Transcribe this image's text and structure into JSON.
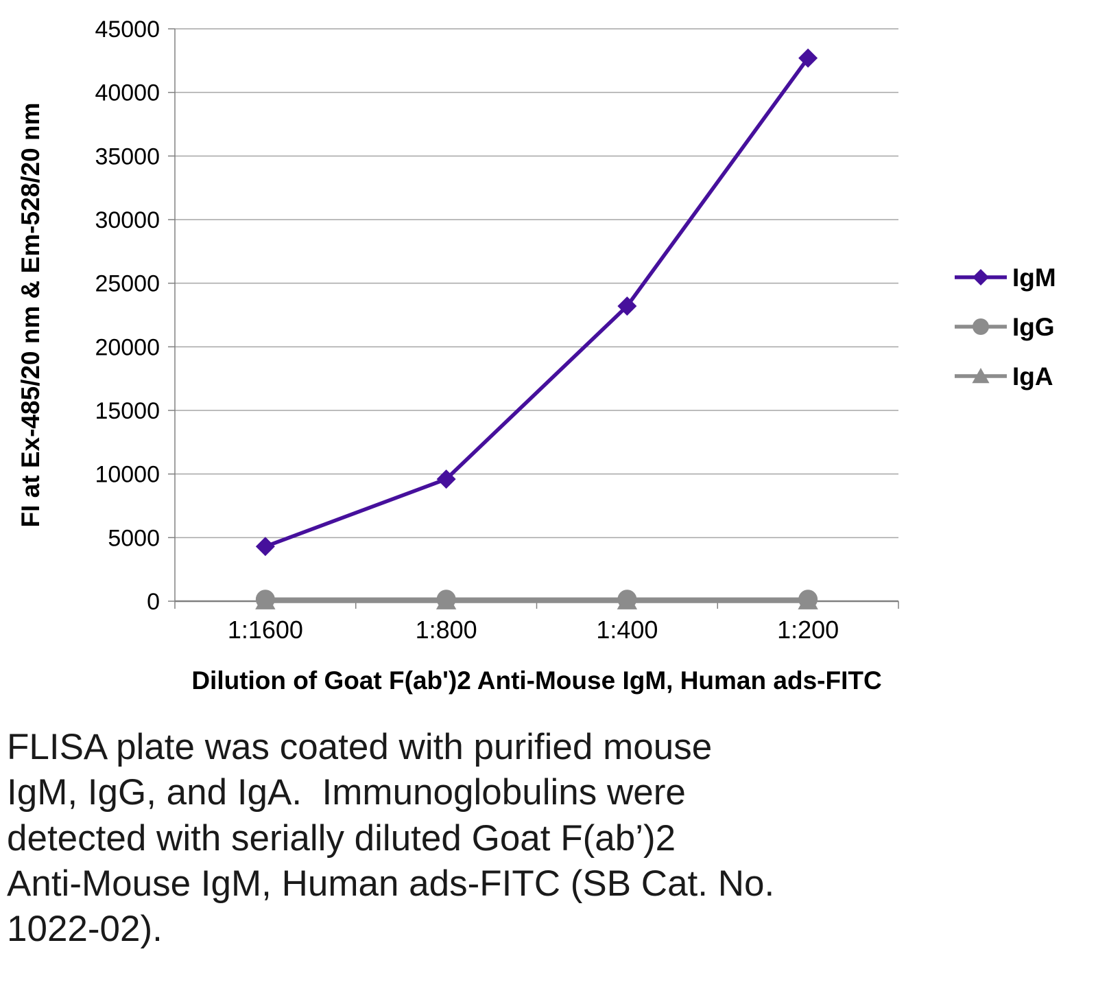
{
  "chart_data": {
    "type": "line",
    "title": "",
    "categories": [
      "1:1600",
      "1:800",
      "1:400",
      "1:200"
    ],
    "series": [
      {
        "name": "IgM",
        "marker": "diamond",
        "color": "#46109c",
        "values": [
          4300,
          9600,
          23200,
          42700
        ]
      },
      {
        "name": "IgG",
        "marker": "circle",
        "color": "#8c8c8c",
        "values": [
          150,
          150,
          150,
          150
        ]
      },
      {
        "name": "IgA",
        "marker": "triangle",
        "color": "#8c8c8c",
        "values": [
          0,
          0,
          0,
          0
        ]
      }
    ],
    "xlabel": "Dilution of Goat F(ab')2 Anti-Mouse IgM, Human ads-FITC",
    "ylabel": "FI at Ex-485/20 nm & Em-528/20 nm",
    "ylim": [
      0,
      45000
    ],
    "ytick_step": 5000,
    "grid": true,
    "grid_color": "#a6a6a6",
    "axis_color": "#808080",
    "legend_position": "right"
  },
  "caption": {
    "text": "FLISA plate was coated with purified mouse\nIgM, IgG, and IgA.  Immunoglobulins were\ndetected with serially diluted Goat F(ab’)2\nAnti-Mouse IgM, Human ads-FITC (SB Cat. No.\n1022-02)."
  }
}
